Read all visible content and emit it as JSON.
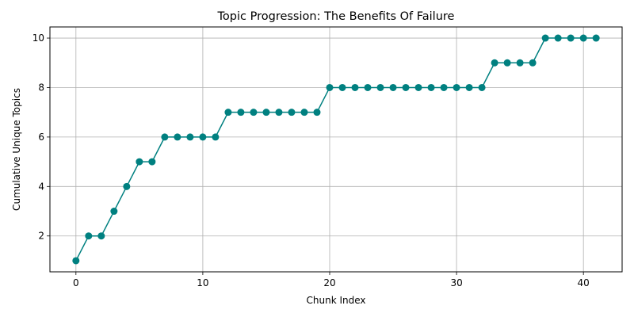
{
  "chart_data": {
    "type": "line",
    "title": "Topic Progression: The Benefits Of Failure",
    "xlabel": "Chunk Index",
    "ylabel": "Cumulative Unique Topics",
    "xlim": [
      -2.05,
      43.05
    ],
    "ylim": [
      0.55,
      10.45
    ],
    "xticks": [
      0,
      10,
      20,
      30,
      40
    ],
    "yticks": [
      2,
      4,
      6,
      8,
      10
    ],
    "grid": true,
    "color": "#008080",
    "series": [
      {
        "x": [
          0,
          1,
          2,
          3,
          4,
          5,
          6,
          7,
          8,
          9,
          10,
          11,
          12,
          13,
          14,
          15,
          16,
          17,
          18,
          19,
          20,
          21,
          22,
          23,
          24,
          25,
          26,
          27,
          28,
          29,
          30,
          31,
          32,
          33,
          34,
          35,
          36,
          37,
          38,
          39,
          40,
          41
        ],
        "values": [
          1,
          2,
          2,
          3,
          4,
          5,
          5,
          6,
          6,
          6,
          6,
          6,
          7,
          7,
          7,
          7,
          7,
          7,
          7,
          7,
          8,
          8,
          8,
          8,
          8,
          8,
          8,
          8,
          8,
          8,
          8,
          8,
          8,
          9,
          9,
          9,
          9,
          10,
          10,
          10,
          10,
          10
        ]
      }
    ]
  }
}
